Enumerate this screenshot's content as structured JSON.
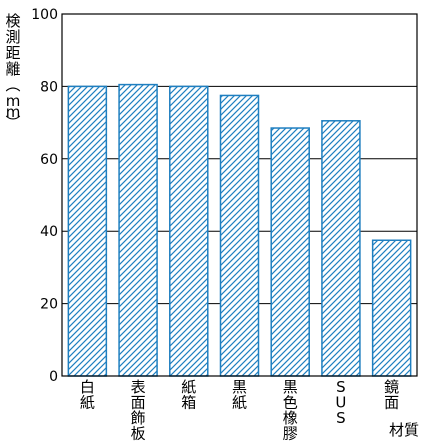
{
  "chart_data": {
    "type": "bar",
    "title": "",
    "ylabel": "検測距離（mm）",
    "xlabel": "材質",
    "ylim": [
      0,
      100
    ],
    "y_ticks": [
      "0",
      "20",
      "40",
      "60",
      "80",
      "100"
    ],
    "grid": "horizontal",
    "categories": [
      "白紙",
      "表面飾板",
      "紙箱",
      "黒紙",
      "黒色橡膠",
      "SUS",
      "鏡面"
    ],
    "values": [
      80,
      80.5,
      80,
      77.5,
      68.5,
      70.5,
      37.5
    ],
    "bar_fill": "#1f7fc0",
    "bar_pattern": "diagonal-hatch"
  }
}
